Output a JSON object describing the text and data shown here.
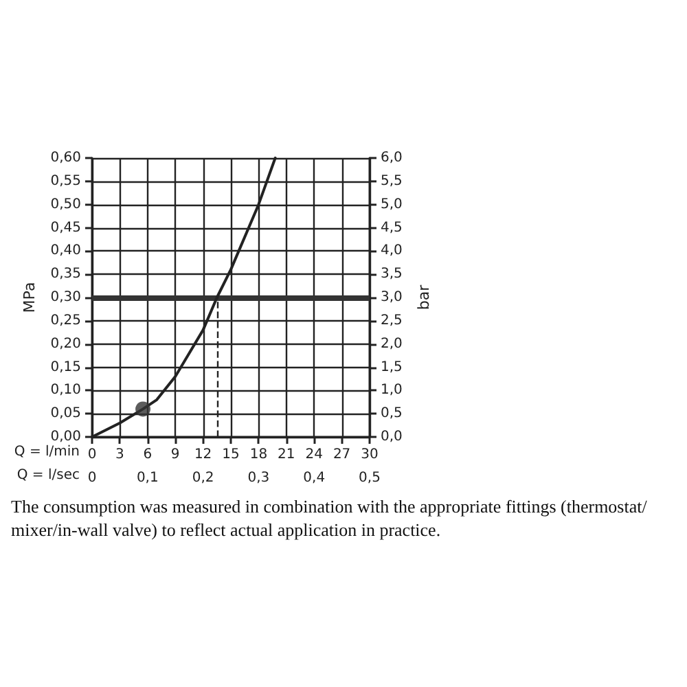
{
  "chart_data": {
    "type": "line",
    "xlabel": "Q = l/min",
    "x2label": "Q = l/sec",
    "ylabel": "MPa",
    "y2label": "bar",
    "xlim": [
      0,
      30
    ],
    "xticks": [
      0,
      3,
      6,
      9,
      12,
      15,
      18,
      21,
      24,
      27,
      30
    ],
    "x2lim": [
      0,
      0.5
    ],
    "x2ticks": [
      0,
      {
        "value": 0.1,
        "label": "0,1"
      },
      {
        "value": 0.2,
        "label": "0,2"
      },
      {
        "value": 0.3,
        "label": "0,3"
      },
      {
        "value": 0.4,
        "label": "0,4"
      },
      {
        "value": 0.5,
        "label": "0,5"
      }
    ],
    "ylim": [
      0,
      0.6
    ],
    "yticks": [
      {
        "value": 0,
        "label": "0,00"
      },
      {
        "value": 0.05,
        "label": "0,05"
      },
      {
        "value": 0.1,
        "label": "0,10"
      },
      {
        "value": 0.15,
        "label": "0,15"
      },
      {
        "value": 0.2,
        "label": "0,20"
      },
      {
        "value": 0.25,
        "label": "0,25"
      },
      {
        "value": 0.3,
        "label": "0,30"
      },
      {
        "value": 0.35,
        "label": "0,35"
      },
      {
        "value": 0.4,
        "label": "0,40"
      },
      {
        "value": 0.45,
        "label": "0,45"
      },
      {
        "value": 0.5,
        "label": "0,50"
      },
      {
        "value": 0.55,
        "label": "0,55"
      },
      {
        "value": 0.6,
        "label": "0,60"
      }
    ],
    "y2lim": [
      0,
      6
    ],
    "y2ticks": [
      {
        "value": 0,
        "label": "0,0"
      },
      {
        "value": 0.5,
        "label": "0,5"
      },
      {
        "value": 1,
        "label": "1,0"
      },
      {
        "value": 1.5,
        "label": "1,5"
      },
      {
        "value": 2,
        "label": "2,0"
      },
      {
        "value": 2.5,
        "label": "2,5"
      },
      {
        "value": 3,
        "label": "3,0"
      },
      {
        "value": 3.5,
        "label": "3,5"
      },
      {
        "value": 4,
        "label": "4,0"
      },
      {
        "value": 4.5,
        "label": "4,5"
      },
      {
        "value": 5,
        "label": "5,0"
      },
      {
        "value": 5.5,
        "label": "5,5"
      },
      {
        "value": 6,
        "label": "6,0"
      }
    ],
    "grid": true,
    "series": [
      {
        "color": "#222222",
        "x": [
          0,
          3,
          5.5,
          7,
          9,
          12,
          13.5,
          15,
          18,
          19.8
        ],
        "values": [
          0,
          0.03,
          0.06,
          0.08,
          0.13,
          0.23,
          0.3,
          0.36,
          0.5,
          0.6
        ]
      },
      {
        "type": "scatter",
        "color": "#333333",
        "x": [
          5.5
        ],
        "values": [
          0.06
        ]
      }
    ],
    "ref_lines": [
      {
        "axis": "y",
        "value": 0.3,
        "color": "#333333",
        "line_style": "solid"
      },
      {
        "axis": "x",
        "value": 13.5,
        "color": "#222222",
        "line_style": "dashed"
      }
    ],
    "annotations": [
      "The consumption was measured in combination with the appropriate fittings (thermostat/mixer/in-wall valve) to reflect actual application in practice."
    ]
  }
}
